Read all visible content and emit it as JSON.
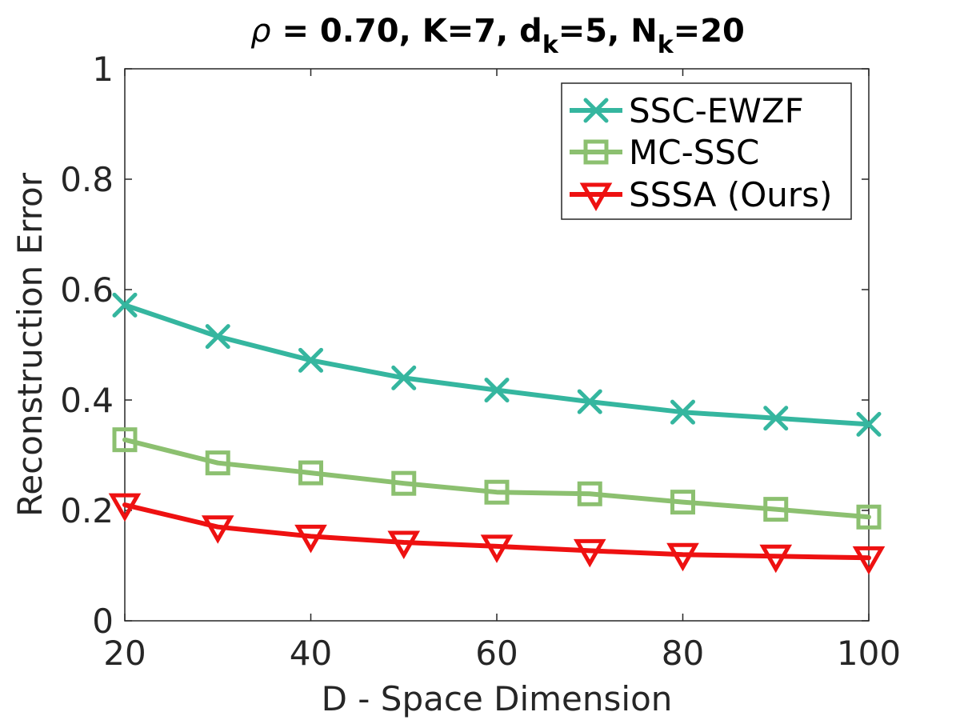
{
  "chart_data": {
    "type": "line",
    "title": {
      "rho_symbol": "ρ",
      "rest": " = 0.70, K=7, d",
      "sub1": "k",
      "mid": "=5, N",
      "sub2": "k",
      "end": "=20"
    },
    "xlabel": "D - Space Dimension",
    "ylabel": "Reconstruction Error",
    "x": [
      20,
      30,
      40,
      50,
      60,
      70,
      80,
      90,
      100
    ],
    "xlim": [
      20,
      100
    ],
    "ylim": [
      0,
      1
    ],
    "xticks": [
      20,
      40,
      60,
      80,
      100
    ],
    "yticks": [
      0,
      0.2,
      0.4,
      0.6,
      0.8,
      1
    ],
    "ytick_labels": [
      "0",
      "0.2",
      "0.4",
      "0.6",
      "0.8",
      "1"
    ],
    "grid": false,
    "legend_position": "top-right",
    "series": [
      {
        "name": "SSC-EWZF",
        "color": "#35b69f",
        "marker": "x",
        "values": [
          0.572,
          0.515,
          0.472,
          0.44,
          0.418,
          0.397,
          0.378,
          0.367,
          0.356
        ]
      },
      {
        "name": "MC-SSC",
        "color": "#8cc070",
        "marker": "square",
        "values": [
          0.328,
          0.286,
          0.268,
          0.249,
          0.233,
          0.23,
          0.215,
          0.202,
          0.188
        ]
      },
      {
        "name": "SSSA (Ours)",
        "color": "#ee1111",
        "marker": "triangle-down",
        "values": [
          0.21,
          0.17,
          0.153,
          0.142,
          0.135,
          0.127,
          0.12,
          0.117,
          0.114
        ]
      }
    ]
  }
}
